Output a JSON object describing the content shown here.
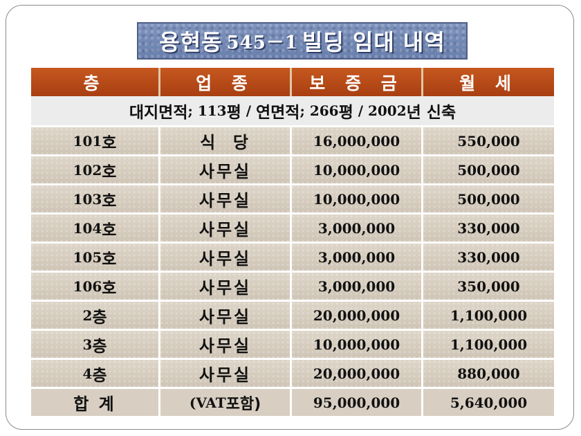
{
  "title": {
    "prefix": "용현동",
    "number": "545－1",
    "suffix": "빌딩 임대 내역"
  },
  "headers": [
    "층",
    "업 종",
    "보 증 금",
    "월 세"
  ],
  "info": {
    "land_label": "대지면적",
    "land_value": "; 113",
    "land_unit": "평",
    "sep1": " / ",
    "floor_label": "연면적",
    "floor_value": "; 266",
    "floor_unit": "평",
    "sep2": " / ",
    "year": "2002",
    "year_suffix": "년 신축"
  },
  "rows": [
    {
      "unit_num": "101",
      "unit_suffix": "호",
      "business": "식  당",
      "deposit": "16,000,000",
      "rent": "550,000"
    },
    {
      "unit_num": "102",
      "unit_suffix": "호",
      "business": "사무실",
      "deposit": "10,000,000",
      "rent": "500,000"
    },
    {
      "unit_num": "103",
      "unit_suffix": "호",
      "business": "사무실",
      "deposit": "10,000,000",
      "rent": "500,000"
    },
    {
      "unit_num": "104",
      "unit_suffix": "호",
      "business": "사무실",
      "deposit": "3,000,000",
      "rent": "330,000"
    },
    {
      "unit_num": "105",
      "unit_suffix": "호",
      "business": "사무실",
      "deposit": "3,000,000",
      "rent": "330,000"
    },
    {
      "unit_num": "106",
      "unit_suffix": "호",
      "business": "사무실",
      "deposit": "3,000,000",
      "rent": "350,000"
    },
    {
      "unit_num": "2",
      "unit_suffix": "층",
      "business": "사무실",
      "deposit": "20,000,000",
      "rent": "1,100,000"
    },
    {
      "unit_num": "3",
      "unit_suffix": "층",
      "business": "사무실",
      "deposit": "10,000,000",
      "rent": "1,100,000"
    },
    {
      "unit_num": "4",
      "unit_suffix": "층",
      "business": "사무실",
      "deposit": "20,000,000",
      "rent": "880,000"
    }
  ],
  "total": {
    "label": "합 계",
    "note_prefix": "(VAT",
    "note_suffix": "포함)",
    "deposit": "95,000,000",
    "rent": "5,640,000"
  }
}
